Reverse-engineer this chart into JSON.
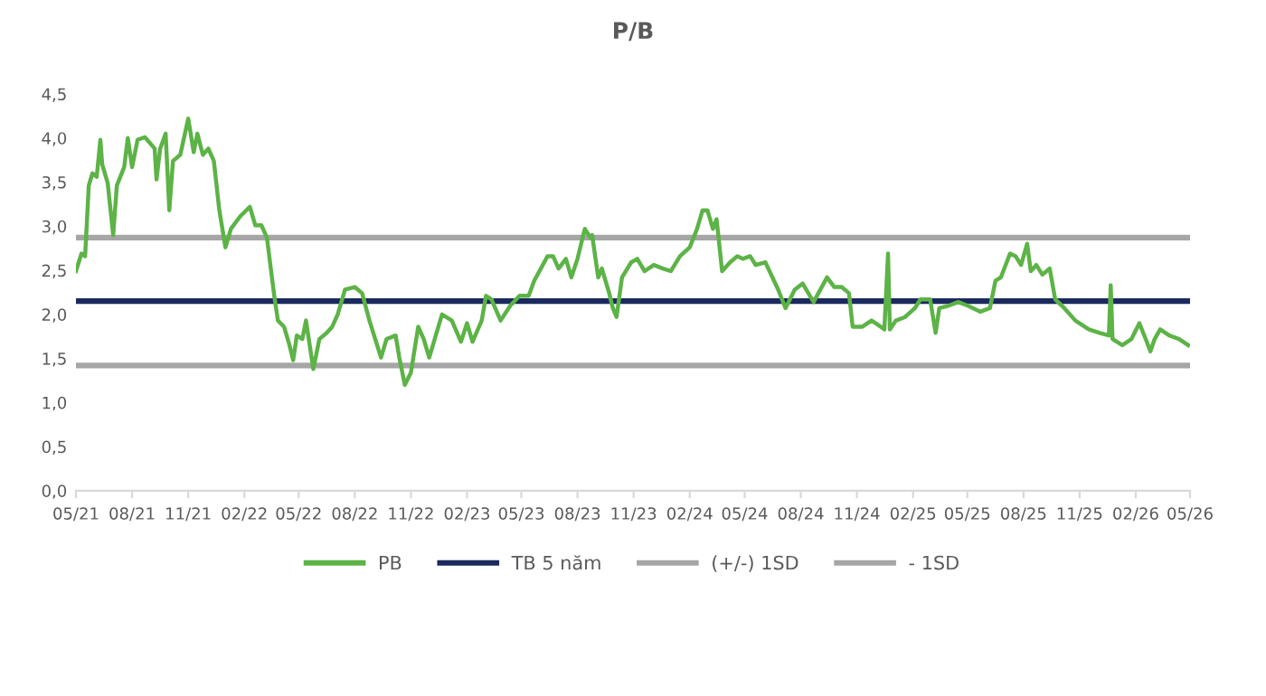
{
  "chart_data": {
    "type": "line",
    "title": "P/B",
    "legend": "bottom",
    "grid": false,
    "marker": "none",
    "line_style": "solid",
    "xlim": [
      "2021-05-01",
      "2026-05-01"
    ],
    "xticks": [
      {
        "value": "2021-05-01",
        "label": "05/21"
      },
      {
        "value": "2021-08-01",
        "label": "08/21"
      },
      {
        "value": "2021-11-01",
        "label": "11/21"
      },
      {
        "value": "2022-02-01",
        "label": "02/22"
      },
      {
        "value": "2022-05-01",
        "label": "05/22"
      },
      {
        "value": "2022-08-01",
        "label": "08/22"
      },
      {
        "value": "2022-11-01",
        "label": "11/22"
      },
      {
        "value": "2023-02-01",
        "label": "02/23"
      },
      {
        "value": "2023-05-01",
        "label": "05/23"
      },
      {
        "value": "2023-08-01",
        "label": "08/23"
      },
      {
        "value": "2023-11-01",
        "label": "11/23"
      },
      {
        "value": "2024-02-01",
        "label": "02/24"
      },
      {
        "value": "2024-05-01",
        "label": "05/24"
      },
      {
        "value": "2024-08-01",
        "label": "08/24"
      },
      {
        "value": "2024-11-01",
        "label": "11/24"
      },
      {
        "value": "2025-02-01",
        "label": "02/25"
      },
      {
        "value": "2025-05-01",
        "label": "05/25"
      },
      {
        "value": "2025-08-01",
        "label": "08/25"
      },
      {
        "value": "2025-11-01",
        "label": "11/25"
      },
      {
        "value": "2026-02-01",
        "label": "02/26"
      },
      {
        "value": "2026-05-01",
        "label": "05/26"
      }
    ],
    "ylim": [
      0,
      4.5
    ],
    "yticks": [
      {
        "value": 0,
        "label": "0,0"
      },
      {
        "value": 0.5,
        "label": "0,5"
      },
      {
        "value": 1,
        "label": "1,0"
      },
      {
        "value": 1.5,
        "label": "1,5"
      },
      {
        "value": 2,
        "label": "2,0"
      },
      {
        "value": 2.5,
        "label": "2,5"
      },
      {
        "value": 3,
        "label": "3,0"
      },
      {
        "value": 3.5,
        "label": "3,5"
      },
      {
        "value": 4,
        "label": "4,0"
      },
      {
        "value": 4.5,
        "label": "4,5"
      }
    ],
    "series": [
      {
        "name": "PB",
        "color": "#5cb346",
        "x": [
          "2021-05-01",
          "2021-05-10",
          "2021-05-16",
          "2021-05-22",
          "2021-05-28",
          "2021-06-04",
          "2021-06-10",
          "2021-06-13",
          "2021-06-22",
          "2021-07-01",
          "2021-07-07",
          "2021-07-19",
          "2021-07-25",
          "2021-08-01",
          "2021-08-10",
          "2021-08-22",
          "2021-09-07",
          "2021-09-10",
          "2021-09-16",
          "2021-09-25",
          "2021-10-01",
          "2021-10-07",
          "2021-10-19",
          "2021-11-01",
          "2021-11-10",
          "2021-11-16",
          "2021-11-25",
          "2021-12-04",
          "2021-12-13",
          "2021-12-22",
          "2022-01-01",
          "2022-01-10",
          "2022-01-25",
          "2022-02-10",
          "2022-02-19",
          "2022-03-01",
          "2022-03-10",
          "2022-03-22",
          "2022-03-28",
          "2022-04-07",
          "2022-04-16",
          "2022-04-22",
          "2022-04-28",
          "2022-05-07",
          "2022-05-13",
          "2022-05-25",
          "2022-06-04",
          "2022-06-16",
          "2022-06-25",
          "2022-07-04",
          "2022-07-16",
          "2022-08-01",
          "2022-08-13",
          "2022-08-25",
          "2022-09-13",
          "2022-09-22",
          "2022-10-07",
          "2022-10-13",
          "2022-10-22",
          "2022-11-01",
          "2022-11-13",
          "2022-11-22",
          "2022-12-01",
          "2022-12-22",
          "2023-01-07",
          "2023-01-22",
          "2023-02-01",
          "2023-02-10",
          "2023-02-25",
          "2023-03-04",
          "2023-03-13",
          "2023-03-28",
          "2023-04-13",
          "2023-04-28",
          "2023-05-13",
          "2023-05-22",
          "2023-06-13",
          "2023-06-22",
          "2023-07-01",
          "2023-07-13",
          "2023-07-22",
          "2023-08-01",
          "2023-08-13",
          "2023-08-22",
          "2023-08-25",
          "2023-09-04",
          "2023-09-10",
          "2023-09-22",
          "2023-09-28",
          "2023-10-04",
          "2023-10-13",
          "2023-10-28",
          "2023-11-07",
          "2023-11-19",
          "2023-12-04",
          "2023-12-19",
          "2024-01-01",
          "2024-01-16",
          "2024-02-01",
          "2024-02-13",
          "2024-02-22",
          "2024-03-01",
          "2024-03-10",
          "2024-03-16",
          "2024-03-25",
          "2024-04-07",
          "2024-04-19",
          "2024-04-28",
          "2024-05-10",
          "2024-05-19",
          "2024-06-04",
          "2024-06-25",
          "2024-07-07",
          "2024-07-22",
          "2024-08-04",
          "2024-08-22",
          "2024-09-13",
          "2024-09-25",
          "2024-10-07",
          "2024-10-19",
          "2024-10-25",
          "2024-11-10",
          "2024-11-25",
          "2024-12-10",
          "2024-12-16",
          "2024-12-22",
          "2024-12-25",
          "2025-01-04",
          "2025-01-19",
          "2025-02-04",
          "2025-02-13",
          "2025-03-01",
          "2025-03-10",
          "2025-03-16",
          "2025-04-01",
          "2025-04-16",
          "2025-05-01",
          "2025-05-22",
          "2025-06-07",
          "2025-06-16",
          "2025-06-25",
          "2025-07-10",
          "2025-07-19",
          "2025-07-28",
          "2025-08-07",
          "2025-08-13",
          "2025-08-22",
          "2025-09-01",
          "2025-09-13",
          "2025-09-22",
          "2025-10-07",
          "2025-10-25",
          "2025-11-16",
          "2025-12-04",
          "2025-12-19",
          "2025-12-22",
          "2025-12-25",
          "2026-01-10",
          "2026-01-25",
          "2026-02-07",
          "2026-02-19",
          "2026-02-25",
          "2026-03-04",
          "2026-03-13",
          "2026-03-28",
          "2026-04-13",
          "2026-04-28"
        ],
        "values": [
          2.49,
          2.69,
          2.66,
          3.46,
          3.6,
          3.56,
          3.98,
          3.7,
          3.49,
          2.9,
          3.46,
          3.67,
          4.0,
          3.67,
          3.98,
          4.01,
          3.88,
          3.53,
          3.88,
          4.05,
          3.18,
          3.74,
          3.81,
          4.22,
          3.84,
          4.05,
          3.81,
          3.88,
          3.74,
          3.18,
          2.76,
          2.97,
          3.11,
          3.22,
          3.01,
          3.01,
          2.87,
          2.21,
          1.93,
          1.86,
          1.65,
          1.48,
          1.76,
          1.72,
          1.93,
          1.38,
          1.72,
          1.79,
          1.86,
          2.0,
          2.28,
          2.31,
          2.24,
          1.93,
          1.51,
          1.72,
          1.76,
          1.51,
          1.2,
          1.34,
          1.86,
          1.72,
          1.51,
          2.0,
          1.93,
          1.69,
          1.9,
          1.69,
          1.93,
          2.21,
          2.17,
          1.93,
          2.1,
          2.21,
          2.21,
          2.38,
          2.66,
          2.66,
          2.52,
          2.63,
          2.42,
          2.63,
          2.97,
          2.87,
          2.9,
          2.42,
          2.52,
          2.24,
          2.07,
          1.97,
          2.42,
          2.59,
          2.63,
          2.49,
          2.56,
          2.52,
          2.49,
          2.66,
          2.76,
          2.97,
          3.18,
          3.18,
          2.97,
          3.08,
          2.49,
          2.59,
          2.66,
          2.63,
          2.66,
          2.56,
          2.59,
          2.28,
          2.07,
          2.28,
          2.35,
          2.14,
          2.42,
          2.31,
          2.31,
          2.24,
          1.86,
          1.86,
          1.93,
          1.86,
          1.83,
          2.69,
          1.83,
          1.93,
          1.97,
          2.07,
          2.17,
          2.17,
          1.79,
          2.07,
          2.1,
          2.14,
          2.1,
          2.03,
          2.07,
          2.38,
          2.42,
          2.69,
          2.66,
          2.56,
          2.8,
          2.49,
          2.56,
          2.45,
          2.52,
          2.17,
          2.07,
          1.93,
          1.83,
          1.79,
          1.76,
          2.33,
          1.72,
          1.65,
          1.72,
          1.9,
          1.69,
          1.58,
          1.72,
          1.83,
          1.76,
          1.72,
          1.65
        ]
      },
      {
        "name": "TB 5 năm",
        "color": "#1b2a5e",
        "x": [
          "2021-05-01",
          "2026-05-01"
        ],
        "values": [
          2.15,
          2.15
        ]
      },
      {
        "name": "(+/-) 1SD",
        "color": "#a6a6a6",
        "x": [
          "2021-05-01",
          "2026-05-01"
        ],
        "values": [
          2.87,
          2.87
        ]
      },
      {
        "name": "- 1SD",
        "color": "#a6a6a6",
        "x": [
          "2021-05-01",
          "2026-05-01"
        ],
        "values": [
          1.42,
          1.42
        ]
      }
    ]
  }
}
